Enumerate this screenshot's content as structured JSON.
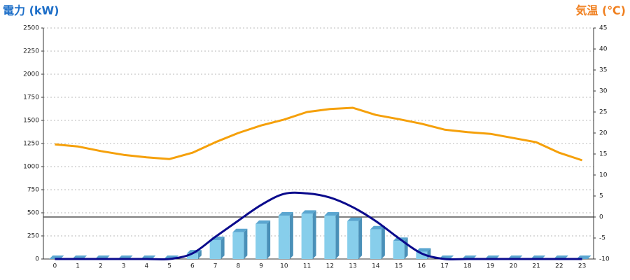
{
  "chart_data": {
    "type": "bar",
    "y_title": "電力 (kW)",
    "y2_title": "気温 (℃)",
    "categories": [
      "0",
      "1",
      "2",
      "3",
      "4",
      "5",
      "6",
      "7",
      "8",
      "9",
      "10",
      "11",
      "12",
      "13",
      "14",
      "15",
      "16",
      "17",
      "18",
      "19",
      "20",
      "21",
      "22",
      "23"
    ],
    "ylim": [
      0,
      2500
    ],
    "yticks": [
      0,
      250,
      500,
      750,
      1000,
      1250,
      1500,
      1750,
      2000,
      2250,
      2500
    ],
    "y2lim": [
      -10,
      45
    ],
    "y2ticks": [
      -10,
      -5,
      0,
      5,
      10,
      15,
      20,
      25,
      30,
      35,
      40,
      45
    ],
    "grid": true,
    "series": [
      {
        "type": "bar",
        "color": "#87ceeb",
        "values": [
          0,
          0,
          0,
          0,
          0,
          0,
          60,
          205,
          290,
          380,
          470,
          490,
          470,
          410,
          320,
          195,
          80,
          0,
          0,
          0,
          0,
          0,
          0,
          0
        ]
      },
      {
        "type": "line",
        "color": "#0a0a8c",
        "smooth": true,
        "values": [
          0,
          0,
          0,
          0,
          0,
          0,
          60,
          240,
          415,
          585,
          705,
          710,
          665,
          560,
          410,
          225,
          60,
          0,
          0,
          0,
          0,
          0,
          0,
          0
        ]
      },
      {
        "type": "line",
        "color": "#f5a00a",
        "axis": "y2",
        "values": [
          17.3,
          16.8,
          15.7,
          14.8,
          14.2,
          13.8,
          15.3,
          17.8,
          20,
          21.8,
          23.2,
          25,
          25.7,
          26,
          24.3,
          23.3,
          22.2,
          20.8,
          20.2,
          19.8,
          18.8,
          17.8,
          15.3,
          13.5
        ]
      }
    ]
  }
}
